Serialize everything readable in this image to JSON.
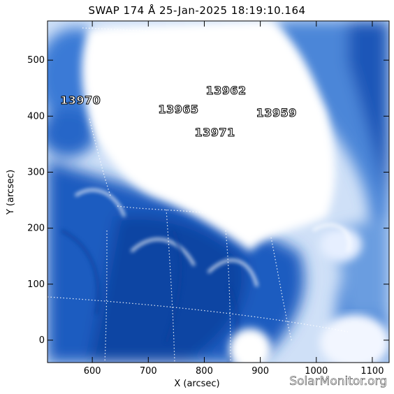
{
  "title": "SWAP 174 Å 25-Jan-2025 18:19:10.164",
  "xlabel": "X (arcsec)",
  "ylabel": "Y (arcsec)",
  "x_range": [
    520,
    1130
  ],
  "y_range": [
    -40,
    570
  ],
  "x_ticks": [
    "600",
    "700",
    "800",
    "900",
    "1000",
    "1100"
  ],
  "x_tick_values": [
    600,
    700,
    800,
    900,
    1000,
    1100
  ],
  "y_ticks": [
    "0",
    "100",
    "200",
    "300",
    "400",
    "500"
  ],
  "y_tick_values": [
    0,
    100,
    200,
    300,
    400,
    500
  ],
  "regions": [
    {
      "label": "13970",
      "x": 580,
      "y": 428
    },
    {
      "label": "13965",
      "x": 755,
      "y": 411
    },
    {
      "label": "13962",
      "x": 840,
      "y": 445
    },
    {
      "label": "13959",
      "x": 930,
      "y": 405
    },
    {
      "label": "13971",
      "x": 820,
      "y": 370
    }
  ],
  "watermark": "SolarMonitor.org",
  "colors": {
    "plot_bg": "#ffffff",
    "deep": "#0b3f9c",
    "mid": "#2f6fd0",
    "light": "#8fb8ec"
  }
}
